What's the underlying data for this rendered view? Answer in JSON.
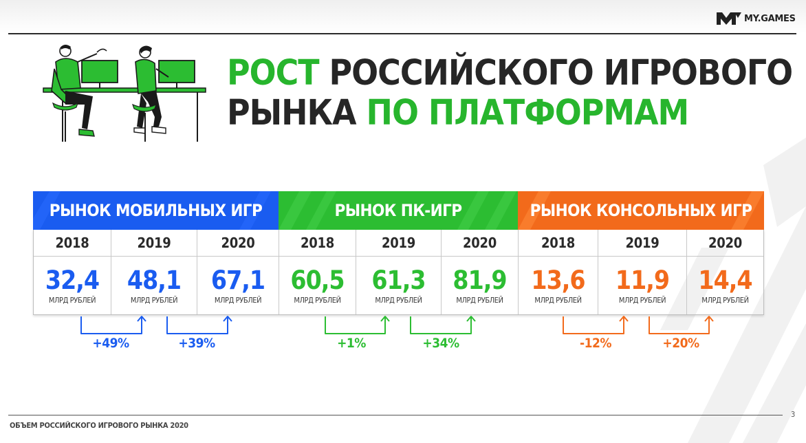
{
  "brand": {
    "name": "MY.GAMES",
    "accent_green": "#2cbd32",
    "accent_blue": "#1a5cf0",
    "accent_orange": "#f26a1b"
  },
  "title": {
    "part1": "РОСТ",
    "part2": " РОССИЙСКОГО ИГРОВОГО",
    "part3": "РЫНКА",
    "part4": " ПО ПЛАТФОРМАМ"
  },
  "markets": [
    {
      "header": "РЫНОК МОБИЛЬНЫХ ИГР",
      "color": "#1a5cf0",
      "years": [
        "2018",
        "2019",
        "2020"
      ],
      "values": [
        "32,4",
        "48,1",
        "67,1"
      ],
      "unit": "МЛРД РУБЛЕЙ",
      "growth": [
        "+49%",
        "+39%"
      ]
    },
    {
      "header": "РЫНОК ПК-ИГР",
      "color": "#2cbd32",
      "years": [
        "2018",
        "2019",
        "2020"
      ],
      "values": [
        "60,5",
        "61,3",
        "81,9"
      ],
      "unit": "МЛРД РУБЛЕЙ",
      "growth": [
        "+1%",
        "+34%"
      ]
    },
    {
      "header": "РЫНОК КОНСОЛЬНЫХ ИГР",
      "color": "#f26a1b",
      "years": [
        "2018",
        "2019",
        "2020"
      ],
      "values": [
        "13,6",
        "11,9",
        "14,4"
      ],
      "unit": "МЛРД РУБЛЕЙ",
      "growth": [
        "-12%",
        "+20%"
      ]
    }
  ],
  "footer": {
    "text": "ОБЪЕМ РОССИЙСКОГО ИГРОВОГО РЫНКА 2020",
    "page": "3"
  },
  "icons": [
    "my-games-logo-icon",
    "gamers-illustration",
    "arrow-up-icon"
  ]
}
